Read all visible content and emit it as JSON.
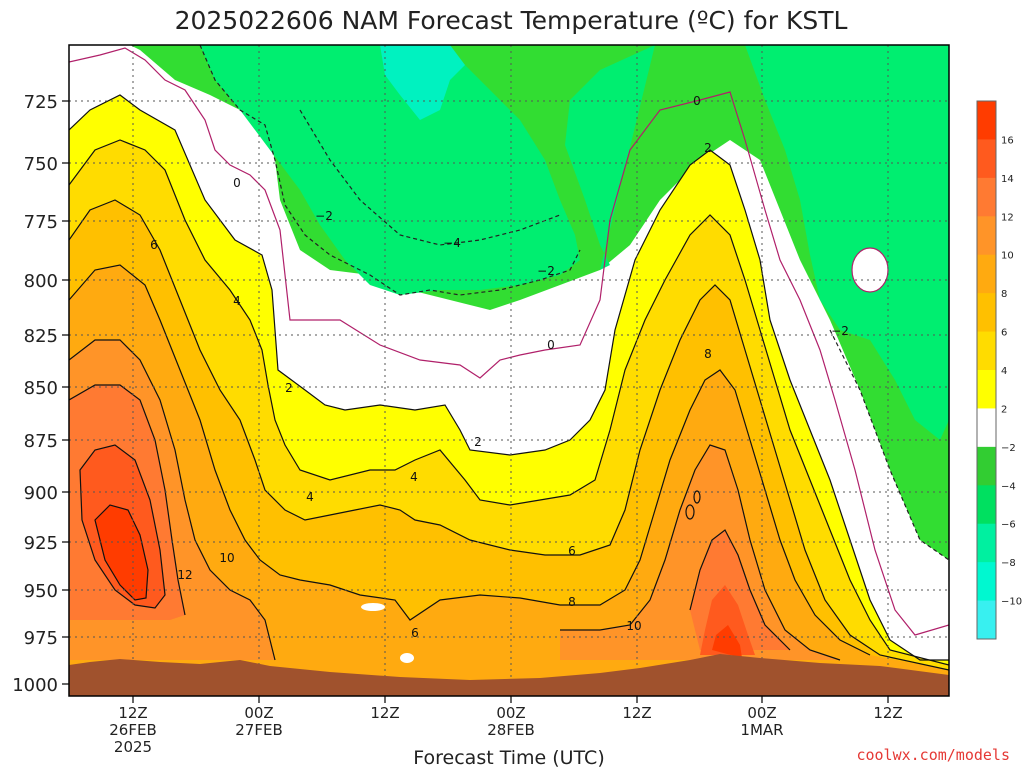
{
  "chart_data": {
    "type": "heatmap",
    "title": "2025022606 NAM Forecast Temperature (ºC) for KSTL",
    "xlabel": "Forecast Time (UTC)",
    "ylabel": "",
    "credit": "coolwx.com/models",
    "y_axis": {
      "scale": "pressure",
      "range_hPa": [
        1005,
        700
      ],
      "inverted": true,
      "ticks": [
        "725",
        "750",
        "775",
        "800",
        "825",
        "850",
        "875",
        "900",
        "925",
        "950",
        "975",
        "1000"
      ]
    },
    "x_ticks": [
      {
        "lines": [
          "12Z",
          "26FEB",
          "2025"
        ]
      },
      {
        "lines": [
          "00Z",
          "27FEB"
        ]
      },
      {
        "lines": [
          "12Z"
        ]
      },
      {
        "lines": [
          "00Z",
          "28FEB"
        ]
      },
      {
        "lines": [
          "12Z"
        ]
      },
      {
        "lines": [
          "00Z",
          "1MAR"
        ]
      },
      {
        "lines": [
          "12Z"
        ]
      }
    ],
    "colorbar": {
      "levels": [
        "16",
        "14",
        "12",
        "10",
        "8",
        "6",
        "4",
        "2",
        "−2",
        "−4",
        "−6",
        "−8",
        "−10"
      ],
      "colors": [
        "#ff3c00",
        "#ff5a1e",
        "#ff7a32",
        "#ff9428",
        "#ffaa10",
        "#ffc000",
        "#ffdc00",
        "#ffff00",
        "#ffffff",
        "#32cd32",
        "#00e060",
        "#00f0a0",
        "#00f8d0",
        "#38f0f0"
      ]
    },
    "band_colors": {
      "t16": "#ff3c00",
      "t14": "#ff5a1e",
      "t12": "#ff7a32",
      "t10": "#ff9428",
      "t8": "#ffaa10",
      "t6": "#ffc000",
      "t4": "#ffdc00",
      "t2": "#ffff00",
      "zero": "#ffffff",
      "m2": "#32dd32",
      "m4": "#00ee70",
      "m8": "#00f2c0",
      "ground": "#a0522d",
      "freezing_line": "#b0206a"
    },
    "contour_labels": [
      {
        "text": "0"
      },
      {
        "text": "0"
      },
      {
        "text": "0"
      },
      {
        "text": "−2"
      },
      {
        "text": "−4"
      },
      {
        "text": "−2"
      },
      {
        "text": "−2"
      },
      {
        "text": "2"
      },
      {
        "text": "2"
      },
      {
        "text": "2"
      },
      {
        "text": "4"
      },
      {
        "text": "4"
      },
      {
        "text": "4"
      },
      {
        "text": "6"
      },
      {
        "text": "6"
      },
      {
        "text": "6"
      },
      {
        "text": "8"
      },
      {
        "text": "8"
      },
      {
        "text": "10"
      },
      {
        "text": "10"
      },
      {
        "text": "12"
      }
    ],
    "features": [
      {
        "name": "warm-core-26feb-12z",
        "peak_C": 16,
        "level_hPa": 925
      },
      {
        "name": "warm-core-1mar-00z",
        "peak_C": 16,
        "level_hPa": 975
      },
      {
        "name": "cold-pool-27feb-28feb",
        "min_C": -8,
        "level_hPa": 725
      }
    ]
  }
}
